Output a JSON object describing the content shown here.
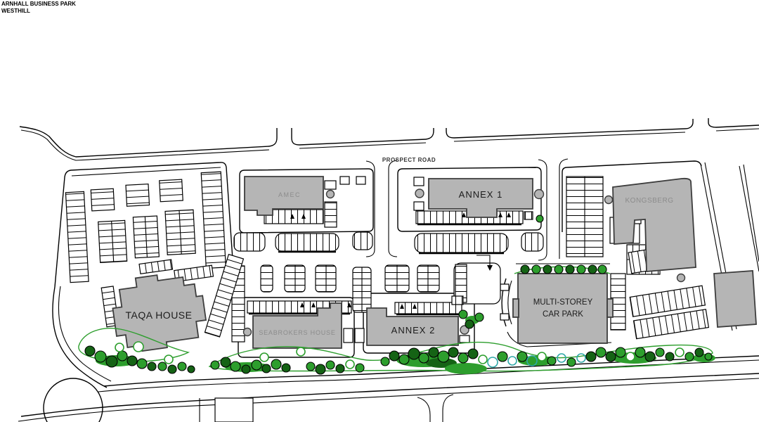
{
  "title": {
    "line1": "ARNHALL BUSINESS PARK",
    "line2": "WESTHILL"
  },
  "roads": {
    "main_road_label": "PROSPECT ROAD"
  },
  "buildings": {
    "amec": {
      "label": "AMEC"
    },
    "annex1": {
      "label": "ANNEX 1"
    },
    "annex2": {
      "label": "ANNEX 2"
    },
    "kongsberg": {
      "label": "KONGSBERG"
    },
    "taqa_house": {
      "label": "TAQA HOUSE"
    },
    "seabrokers_house": {
      "label": "SEABROKERS HOUSE"
    },
    "multi_storey_car_park": {
      "label_line1": "MULTI-STOREY",
      "label_line2": "CAR PARK"
    }
  },
  "colors": {
    "building-fill": "#b5b5b5",
    "building-stroke": "#3d3d3d",
    "line": "#000000",
    "label-dark": "#1c1c1c",
    "label-gray": "#8c8c8c",
    "tree-dark": "#156315",
    "tree-green": "#2d9e2d",
    "tree-teal": "#2fa8a8"
  }
}
